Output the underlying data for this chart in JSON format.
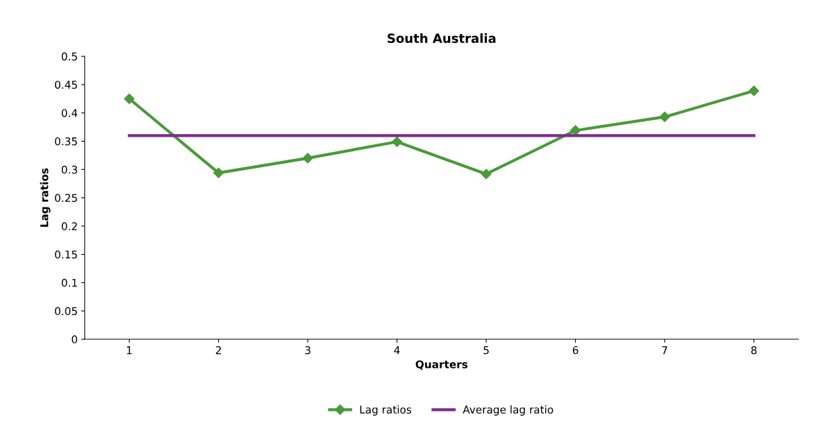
{
  "chart_data": {
    "type": "line",
    "title": "South Australia",
    "xlabel": "Quarters",
    "ylabel": "Lag ratios",
    "categories": [
      "1",
      "2",
      "3",
      "4",
      "5",
      "6",
      "7",
      "8"
    ],
    "series": [
      {
        "name": "Lag ratios",
        "color": "#4a9a3a",
        "marker": "diamond",
        "values": [
          0.425,
          0.294,
          0.32,
          0.349,
          0.292,
          0.369,
          0.393,
          0.439
        ]
      },
      {
        "name": "Average lag ratio",
        "color": "#7b2c8c",
        "marker": "none",
        "values": [
          0.36,
          0.36,
          0.36,
          0.36,
          0.36,
          0.36,
          0.36,
          0.36
        ]
      }
    ],
    "ylim": [
      0,
      0.5
    ],
    "yticks": [
      0,
      0.05,
      0.1,
      0.15,
      0.2,
      0.25,
      0.3,
      0.35,
      0.4,
      0.45,
      0.5
    ],
    "grid": false,
    "legend": "bottom",
    "line_style": "solid"
  }
}
